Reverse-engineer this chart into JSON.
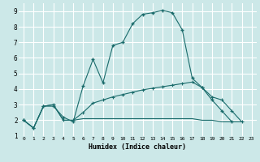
{
  "xlabel": "Humidex (Indice chaleur)",
  "background_color": "#cce8e8",
  "grid_color": "#ffffff",
  "line_color": "#1a6b6b",
  "xlim": [
    -0.5,
    23.5
  ],
  "ylim": [
    1,
    9.5
  ],
  "xticks": [
    0,
    1,
    2,
    3,
    4,
    5,
    6,
    7,
    8,
    9,
    10,
    11,
    12,
    13,
    14,
    15,
    16,
    17,
    18,
    19,
    20,
    21,
    22,
    23
  ],
  "yticks": [
    1,
    2,
    3,
    4,
    5,
    6,
    7,
    8,
    9
  ],
  "line1_x": [
    0,
    1,
    2,
    3,
    4,
    5,
    6,
    7,
    8,
    9,
    10,
    11,
    12,
    13,
    14,
    15,
    16,
    17,
    18,
    19,
    20,
    21
  ],
  "line1_y": [
    2.0,
    1.5,
    2.9,
    2.9,
    2.2,
    1.9,
    4.2,
    5.9,
    4.4,
    6.8,
    7.0,
    8.2,
    8.8,
    8.9,
    9.05,
    8.9,
    7.8,
    4.7,
    4.1,
    3.3,
    2.6,
    1.9
  ],
  "line2_x": [
    0,
    1,
    2,
    3,
    4,
    5,
    6,
    7,
    8,
    9,
    10,
    11,
    12,
    13,
    14,
    15,
    16,
    17,
    18,
    19,
    20,
    21,
    22
  ],
  "line2_y": [
    2.0,
    1.5,
    2.9,
    3.0,
    2.0,
    2.0,
    2.5,
    3.1,
    3.3,
    3.5,
    3.65,
    3.8,
    3.95,
    4.05,
    4.15,
    4.25,
    4.35,
    4.45,
    4.1,
    3.5,
    3.3,
    2.6,
    1.9
  ],
  "line3_x": [
    0,
    1,
    2,
    3,
    4,
    5,
    6,
    7,
    8,
    9,
    10,
    11,
    12,
    13,
    14,
    15,
    16,
    17,
    18,
    19,
    20,
    21,
    22
  ],
  "line3_y": [
    2.0,
    1.5,
    2.9,
    3.0,
    2.0,
    2.0,
    2.1,
    2.1,
    2.1,
    2.1,
    2.1,
    2.1,
    2.1,
    2.1,
    2.1,
    2.1,
    2.1,
    2.1,
    2.0,
    2.0,
    1.9,
    1.9,
    1.9
  ]
}
